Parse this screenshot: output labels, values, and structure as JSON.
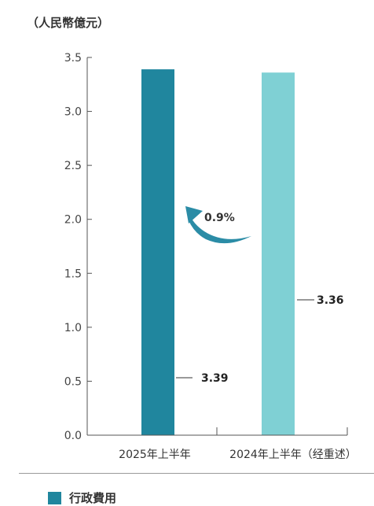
{
  "unit_label": "（人民幣億元）",
  "colors": {
    "bar_2025": "#20869e",
    "bar_2024": "#7fd0d4",
    "arrow": "#2b8ca6",
    "axis": "#555555"
  },
  "chart_data": {
    "type": "bar",
    "categories": [
      "2025年上半年",
      "2024年上半年（经重述）"
    ],
    "series": [
      {
        "name": "行政費用",
        "values": [
          3.39,
          3.36
        ]
      }
    ],
    "value_labels": [
      "3.39",
      "3.36"
    ],
    "change_label": "0.9%",
    "ylim": [
      0,
      3.5
    ],
    "yticks": [
      {
        "value": 0.0,
        "label": "0.0"
      },
      {
        "value": 0.5,
        "label": "0.5"
      },
      {
        "value": 1.0,
        "label": "1.0"
      },
      {
        "value": 1.5,
        "label": "1.5"
      },
      {
        "value": 2.0,
        "label": "2.0"
      },
      {
        "value": 2.5,
        "label": "2.5"
      },
      {
        "value": 3.0,
        "label": "3.0"
      },
      {
        "value": 3.5,
        "label": "3.5"
      }
    ],
    "legend_position": "bottom-left",
    "grid": false
  }
}
